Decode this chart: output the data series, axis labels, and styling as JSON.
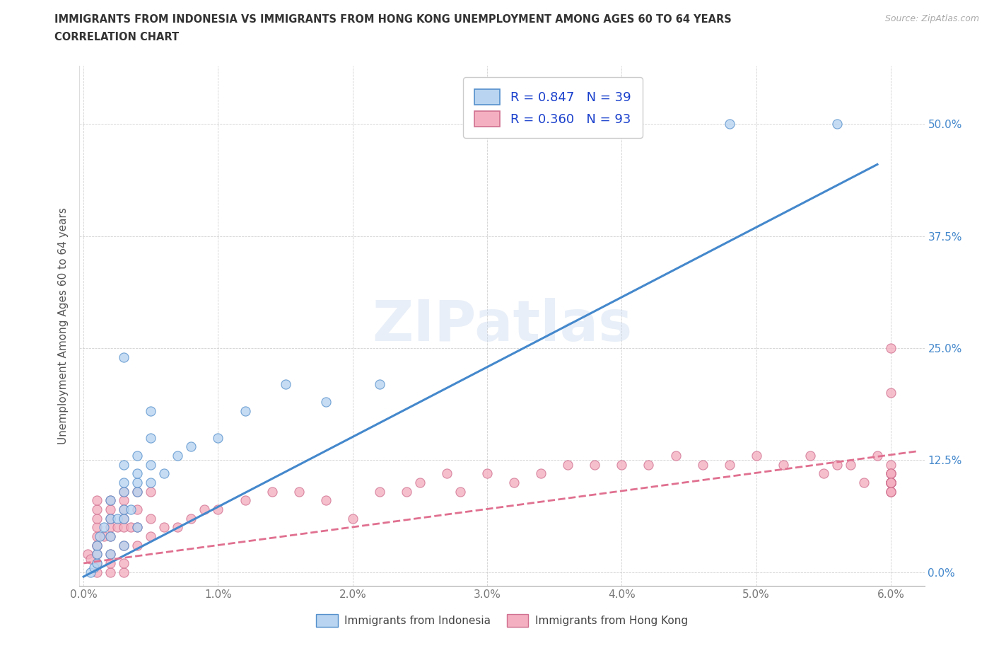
{
  "title_line1": "IMMIGRANTS FROM INDONESIA VS IMMIGRANTS FROM HONG KONG UNEMPLOYMENT AMONG AGES 60 TO 64 YEARS",
  "title_line2": "CORRELATION CHART",
  "source": "Source: ZipAtlas.com",
  "ylabel": "Unemployment Among Ages 60 to 64 years",
  "xlim": [
    -0.0003,
    0.0625
  ],
  "ylim": [
    -0.015,
    0.565
  ],
  "xticks": [
    0.0,
    0.01,
    0.02,
    0.03,
    0.04,
    0.05,
    0.06
  ],
  "xticklabels": [
    "0.0%",
    "1.0%",
    "2.0%",
    "3.0%",
    "4.0%",
    "5.0%",
    "6.0%"
  ],
  "yticks": [
    0.0,
    0.125,
    0.25,
    0.375,
    0.5
  ],
  "yticklabels": [
    "0.0%",
    "12.5%",
    "25.0%",
    "37.5%",
    "50.0%"
  ],
  "color_indonesia": "#b8d4f0",
  "color_hk": "#f4b0c0",
  "edge_indonesia": "#5590cc",
  "edge_hk": "#d07090",
  "line_color_indonesia": "#4488cc",
  "line_color_hk": "#e07090",
  "legend_label_indonesia": "R = 0.847   N = 39",
  "legend_label_hk": "R = 0.360   N = 93",
  "label_indonesia": "Immigrants from Indonesia",
  "label_hk": "Immigrants from Hong Kong",
  "watermark": "ZIPatlas",
  "indo_line_x0": 0.0,
  "indo_line_y0": -0.005,
  "indo_line_x1": 0.059,
  "indo_line_y1": 0.455,
  "hk_line_x0": 0.0,
  "hk_line_y0": 0.01,
  "hk_line_x1": 0.062,
  "hk_line_y1": 0.135,
  "indonesia_x": [
    0.0005,
    0.0008,
    0.001,
    0.001,
    0.001,
    0.0012,
    0.0015,
    0.002,
    0.002,
    0.002,
    0.002,
    0.0025,
    0.003,
    0.003,
    0.003,
    0.003,
    0.003,
    0.003,
    0.003,
    0.0035,
    0.004,
    0.004,
    0.004,
    0.004,
    0.004,
    0.005,
    0.005,
    0.005,
    0.005,
    0.006,
    0.007,
    0.008,
    0.01,
    0.012,
    0.015,
    0.018,
    0.022,
    0.048,
    0.056
  ],
  "indonesia_y": [
    0.0,
    0.005,
    0.01,
    0.02,
    0.03,
    0.04,
    0.05,
    0.02,
    0.04,
    0.06,
    0.08,
    0.06,
    0.03,
    0.06,
    0.07,
    0.09,
    0.1,
    0.12,
    0.24,
    0.07,
    0.05,
    0.09,
    0.1,
    0.11,
    0.13,
    0.1,
    0.12,
    0.15,
    0.18,
    0.11,
    0.13,
    0.14,
    0.15,
    0.18,
    0.21,
    0.19,
    0.21,
    0.5,
    0.5
  ],
  "hk_x": [
    0.0003,
    0.0005,
    0.001,
    0.001,
    0.001,
    0.001,
    0.001,
    0.001,
    0.001,
    0.001,
    0.001,
    0.001,
    0.0015,
    0.002,
    0.002,
    0.002,
    0.002,
    0.002,
    0.002,
    0.002,
    0.002,
    0.0025,
    0.003,
    0.003,
    0.003,
    0.003,
    0.003,
    0.003,
    0.003,
    0.003,
    0.0035,
    0.004,
    0.004,
    0.004,
    0.004,
    0.005,
    0.005,
    0.005,
    0.006,
    0.007,
    0.008,
    0.009,
    0.01,
    0.012,
    0.014,
    0.016,
    0.018,
    0.02,
    0.022,
    0.024,
    0.025,
    0.027,
    0.028,
    0.03,
    0.032,
    0.034,
    0.036,
    0.038,
    0.04,
    0.042,
    0.044,
    0.046,
    0.048,
    0.05,
    0.052,
    0.054,
    0.055,
    0.056,
    0.057,
    0.058,
    0.059,
    0.06,
    0.06,
    0.06,
    0.06,
    0.06,
    0.06,
    0.06,
    0.06,
    0.06,
    0.06,
    0.06,
    0.06,
    0.06,
    0.06,
    0.06,
    0.06,
    0.06,
    0.06,
    0.06,
    0.06,
    0.06,
    0.06
  ],
  "hk_y": [
    0.02,
    0.015,
    0.0,
    0.01,
    0.02,
    0.03,
    0.04,
    0.05,
    0.06,
    0.07,
    0.08,
    0.03,
    0.04,
    0.0,
    0.01,
    0.02,
    0.04,
    0.05,
    0.06,
    0.07,
    0.08,
    0.05,
    0.0,
    0.01,
    0.03,
    0.05,
    0.06,
    0.07,
    0.08,
    0.09,
    0.05,
    0.03,
    0.05,
    0.07,
    0.09,
    0.04,
    0.06,
    0.09,
    0.05,
    0.05,
    0.06,
    0.07,
    0.07,
    0.08,
    0.09,
    0.09,
    0.08,
    0.06,
    0.09,
    0.09,
    0.1,
    0.11,
    0.09,
    0.11,
    0.1,
    0.11,
    0.12,
    0.12,
    0.12,
    0.12,
    0.13,
    0.12,
    0.12,
    0.13,
    0.12,
    0.13,
    0.11,
    0.12,
    0.12,
    0.1,
    0.13,
    0.09,
    0.1,
    0.1,
    0.1,
    0.11,
    0.1,
    0.1,
    0.25,
    0.11,
    0.12,
    0.11,
    0.1,
    0.2,
    0.09,
    0.1,
    0.1,
    0.1,
    0.11,
    0.09,
    0.1,
    0.1,
    0.1
  ]
}
